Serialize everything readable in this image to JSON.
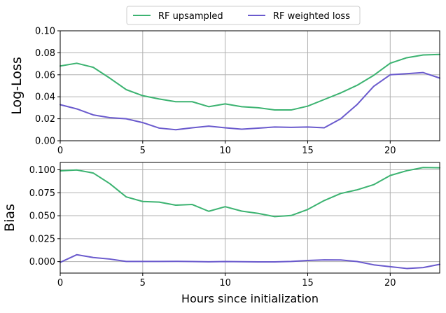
{
  "chart_data": [
    {
      "type": "line",
      "x": [
        0,
        1,
        2,
        3,
        4,
        5,
        6,
        7,
        8,
        9,
        10,
        11,
        12,
        13,
        14,
        15,
        16,
        17,
        18,
        19,
        20,
        21,
        22,
        23
      ],
      "xlim": [
        0,
        23
      ],
      "xticks": [
        "0",
        "5",
        "10",
        "15",
        "20"
      ],
      "xlabel": "",
      "ylabel": "Log-Loss",
      "ylim": [
        0,
        0.1
      ],
      "yticks": [
        "0.00",
        "0.02",
        "0.04",
        "0.06",
        "0.08",
        "0.10"
      ],
      "grid": true,
      "series": [
        {
          "name": "RF upsampled",
          "color": "#3cb371",
          "values": [
            0.068,
            0.0705,
            0.0668,
            0.057,
            0.0465,
            0.041,
            0.038,
            0.0355,
            0.0355,
            0.031,
            0.0335,
            0.031,
            0.03,
            0.028,
            0.028,
            0.0315,
            0.0375,
            0.0435,
            0.0505,
            0.0595,
            0.0705,
            0.0755,
            0.078,
            0.0785
          ]
        },
        {
          "name": "RF weighted loss",
          "color": "#6a5acd",
          "values": [
            0.0328,
            0.029,
            0.0235,
            0.021,
            0.02,
            0.0165,
            0.0115,
            0.01,
            0.0118,
            0.0133,
            0.0118,
            0.0105,
            0.0115,
            0.0125,
            0.0122,
            0.0125,
            0.0118,
            0.02,
            0.033,
            0.0495,
            0.06,
            0.061,
            0.062,
            0.057
          ]
        }
      ]
    },
    {
      "type": "line",
      "x": [
        0,
        1,
        2,
        3,
        4,
        5,
        6,
        7,
        8,
        9,
        10,
        11,
        12,
        13,
        14,
        15,
        16,
        17,
        18,
        19,
        20,
        21,
        22,
        23
      ],
      "xlim": [
        0,
        23
      ],
      "xticks": [
        "0",
        "5",
        "10",
        "15",
        "20"
      ],
      "xlabel": "Hours since initialization",
      "ylabel": "Bias",
      "ylim": [
        -0.0125,
        0.108
      ],
      "yticks": [
        "0.000",
        "0.025",
        "0.050",
        "0.075",
        "0.100"
      ],
      "grid": true,
      "series": [
        {
          "name": "RF upsampled",
          "color": "#3cb371",
          "values": [
            0.0988,
            0.0998,
            0.0965,
            0.085,
            0.0705,
            0.0655,
            0.0648,
            0.0615,
            0.0622,
            0.0548,
            0.0598,
            0.055,
            0.0525,
            0.049,
            0.0502,
            0.0568,
            0.0665,
            0.0742,
            0.0782,
            0.0838,
            0.0938,
            0.099,
            0.1025,
            0.1022
          ]
        },
        {
          "name": "RF weighted loss",
          "color": "#6a5acd",
          "values": [
            -0.0008,
            0.0075,
            0.0045,
            0.0028,
            0.0002,
            0.0002,
            0.0002,
            0.0003,
            0.0001,
            -0.0002,
            0.0001,
            -0.0001,
            -0.0003,
            -0.0003,
            0.0002,
            0.0012,
            0.0019,
            0.0018,
            0.0001,
            -0.0035,
            -0.0055,
            -0.0075,
            -0.0065,
            -0.003
          ]
        }
      ]
    }
  ],
  "legend": {
    "placement": "top-center",
    "entries": [
      {
        "label": "RF upsampled",
        "color": "#3cb371"
      },
      {
        "label": "RF weighted loss",
        "color": "#6a5acd"
      }
    ]
  }
}
